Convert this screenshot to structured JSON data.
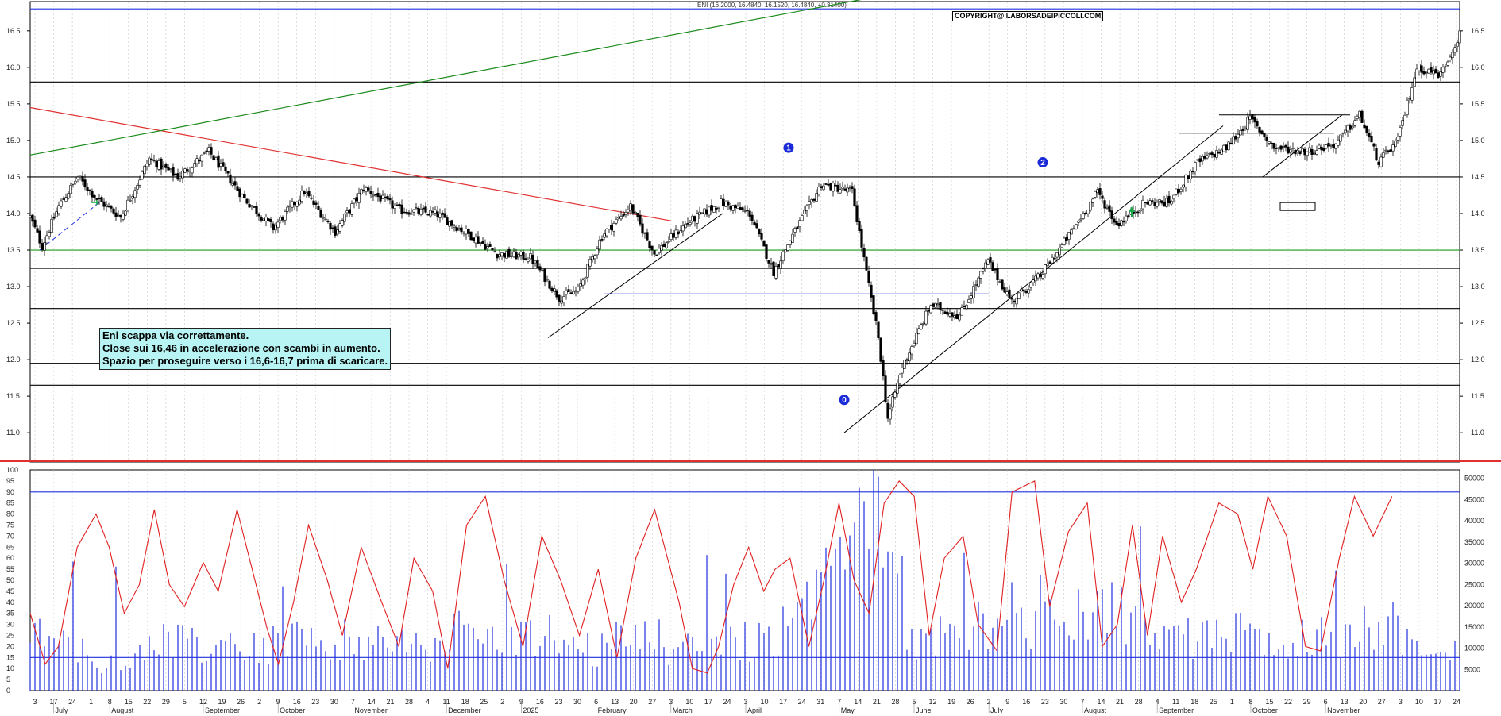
{
  "header": {
    "quote": "ENI (16.2000, 16.4840, 16.1520, 16.4840, +0.31400)",
    "copyright": "COPYRIGHT@ LABORSADEIPICCOLI.COM"
  },
  "note": {
    "line1": "Eni scappa via correttamente.",
    "line2": "Close sui 16,46 in accelerazione con scambi in aumento.",
    "line3": "Spazio per proseguire verso i 16,6-16,7 prima di scaricare."
  },
  "wave_labels": [
    "0",
    "1",
    "2"
  ],
  "chart_data": [
    {
      "type": "candlestick",
      "title": "ENI (16.2000, 16.4840, 16.1520, 16.4840, +0.31400)",
      "ylim": [
        10.6,
        16.9
      ],
      "y_ticks": [
        "11.0",
        "11.5",
        "12.0",
        "12.5",
        "13.0",
        "13.5",
        "14.0",
        "14.5",
        "15.0",
        "15.5",
        "16.0",
        "16.5"
      ],
      "x_months": [
        "July",
        "August",
        "September",
        "October",
        "November",
        "December",
        "2025",
        "February",
        "March",
        "April",
        "May",
        "June",
        "July",
        "August",
        "September",
        "October",
        "November"
      ],
      "x_days": [
        "3",
        "17",
        "24",
        "1",
        "8",
        "15",
        "22",
        "29",
        "5",
        "12",
        "19",
        "26",
        "2",
        "9",
        "16",
        "23",
        "30",
        "7",
        "14",
        "21",
        "28",
        "4",
        "11",
        "18",
        "25",
        "2",
        "9",
        "16",
        "23",
        "30",
        "6",
        "13",
        "20",
        "27",
        "3",
        "10",
        "17",
        "24",
        "3",
        "10",
        "17",
        "24",
        "31",
        "7",
        "14",
        "21",
        "28",
        "5",
        "12",
        "19",
        "26",
        "2",
        "9",
        "16",
        "23",
        "30",
        "7",
        "14",
        "21",
        "28",
        "4",
        "11",
        "18",
        "25",
        "1",
        "8",
        "15",
        "22",
        "29",
        "6",
        "13",
        "20",
        "27",
        "3",
        "10",
        "17",
        "24"
      ],
      "close_anchors": [
        [
          0,
          13.95
        ],
        [
          5,
          13.55
        ],
        [
          12,
          14.1
        ],
        [
          20,
          14.5
        ],
        [
          28,
          14.2
        ],
        [
          38,
          13.95
        ],
        [
          50,
          14.75
        ],
        [
          62,
          14.5
        ],
        [
          75,
          14.85
        ],
        [
          90,
          14.2
        ],
        [
          102,
          13.8
        ],
        [
          115,
          14.3
        ],
        [
          128,
          13.75
        ],
        [
          140,
          14.35
        ],
        [
          155,
          14.05
        ],
        [
          170,
          14.0
        ],
        [
          185,
          13.7
        ],
        [
          196,
          13.45
        ],
        [
          210,
          13.4
        ],
        [
          222,
          12.85
        ],
        [
          230,
          12.95
        ],
        [
          240,
          13.7
        ],
        [
          252,
          14.1
        ],
        [
          262,
          13.45
        ],
        [
          275,
          13.85
        ],
        [
          290,
          14.15
        ],
        [
          302,
          14.0
        ],
        [
          312,
          13.2
        ],
        [
          320,
          13.7
        ],
        [
          332,
          14.4
        ],
        [
          345,
          14.3
        ],
        [
          352,
          13.0
        ],
        [
          356,
          12.3
        ],
        [
          360,
          11.2
        ],
        [
          366,
          11.9
        ],
        [
          378,
          12.75
        ],
        [
          390,
          12.6
        ],
        [
          402,
          13.35
        ],
        [
          412,
          12.8
        ],
        [
          424,
          13.15
        ],
        [
          436,
          13.7
        ],
        [
          448,
          14.3
        ],
        [
          456,
          13.85
        ],
        [
          468,
          14.15
        ],
        [
          478,
          14.15
        ],
        [
          490,
          14.7
        ],
        [
          502,
          14.9
        ],
        [
          512,
          15.3
        ],
        [
          522,
          14.9
        ],
        [
          536,
          14.85
        ],
        [
          548,
          14.95
        ],
        [
          558,
          15.35
        ],
        [
          566,
          14.7
        ],
        [
          574,
          15.0
        ],
        [
          582,
          16.0
        ],
        [
          592,
          15.9
        ],
        [
          600,
          16.46
        ]
      ],
      "volume_anchors": [
        [
          0,
          13000
        ],
        [
          30,
          7000
        ],
        [
          60,
          12000
        ],
        [
          90,
          9000
        ],
        [
          120,
          14000
        ],
        [
          150,
          11000
        ],
        [
          180,
          13000
        ],
        [
          210,
          15000
        ],
        [
          230,
          9000
        ],
        [
          250,
          12000
        ],
        [
          280,
          10000
        ],
        [
          300,
          12000
        ],
        [
          320,
          15000
        ],
        [
          345,
          30000
        ],
        [
          355,
          52000
        ],
        [
          370,
          12000
        ],
        [
          400,
          15000
        ],
        [
          430,
          16000
        ],
        [
          455,
          18000
        ],
        [
          480,
          12000
        ],
        [
          510,
          13000
        ],
        [
          540,
          12000
        ],
        [
          570,
          16000
        ],
        [
          590,
          10000
        ],
        [
          600,
          12000
        ]
      ],
      "horizontal_levels": [
        16.8,
        15.8,
        14.5,
        13.5,
        13.25,
        12.7,
        11.95,
        11.65
      ],
      "annotations": [
        "0",
        "1",
        "2"
      ]
    },
    {
      "type": "line",
      "name": "oscillator",
      "ylim": [
        0,
        100
      ],
      "y_ticks": [
        "0",
        "5",
        "10",
        "15",
        "20",
        "25",
        "30",
        "35",
        "40",
        "45",
        "50",
        "55",
        "60",
        "65",
        "70",
        "75",
        "80",
        "85",
        "90",
        "95",
        "100"
      ],
      "volume_ticks": [
        "5000",
        "10000",
        "15000",
        "20000",
        "25000",
        "30000",
        "35000",
        "40000",
        "45000",
        "50000"
      ],
      "levels": [
        90,
        15
      ],
      "line_anchors": [
        [
          0,
          35
        ],
        [
          8,
          12
        ],
        [
          15,
          20
        ],
        [
          25,
          65
        ],
        [
          35,
          80
        ],
        [
          42,
          65
        ],
        [
          50,
          35
        ],
        [
          58,
          48
        ],
        [
          66,
          82
        ],
        [
          74,
          48
        ],
        [
          82,
          38
        ],
        [
          92,
          58
        ],
        [
          100,
          45
        ],
        [
          110,
          82
        ],
        [
          118,
          55
        ],
        [
          126,
          28
        ],
        [
          132,
          12
        ],
        [
          140,
          40
        ],
        [
          148,
          75
        ],
        [
          158,
          50
        ],
        [
          166,
          25
        ],
        [
          176,
          65
        ],
        [
          186,
          42
        ],
        [
          196,
          20
        ],
        [
          204,
          60
        ],
        [
          214,
          45
        ],
        [
          222,
          10
        ],
        [
          232,
          75
        ],
        [
          242,
          88
        ],
        [
          252,
          50
        ],
        [
          262,
          20
        ],
        [
          272,
          70
        ],
        [
          282,
          50
        ],
        [
          292,
          25
        ],
        [
          302,
          55
        ],
        [
          312,
          15
        ],
        [
          322,
          60
        ],
        [
          332,
          82
        ],
        [
          345,
          40
        ],
        [
          352,
          10
        ],
        [
          360,
          8
        ],
        [
          366,
          20
        ],
        [
          374,
          48
        ],
        [
          382,
          65
        ],
        [
          390,
          45
        ],
        [
          396,
          55
        ],
        [
          404,
          60
        ],
        [
          414,
          20
        ],
        [
          422,
          50
        ],
        [
          430,
          85
        ],
        [
          438,
          50
        ],
        [
          446,
          35
        ],
        [
          454,
          85
        ],
        [
          462,
          95
        ],
        [
          470,
          88
        ],
        [
          478,
          25
        ],
        [
          486,
          60
        ],
        [
          496,
          70
        ],
        [
          504,
          30
        ],
        [
          514,
          18
        ],
        [
          522,
          90
        ],
        [
          534,
          95
        ],
        [
          542,
          38
        ],
        [
          552,
          72
        ],
        [
          562,
          85
        ],
        [
          570,
          20
        ],
        [
          578,
          30
        ],
        [
          586,
          75
        ],
        [
          594,
          25
        ],
        [
          602,
          70
        ],
        [
          612,
          40
        ],
        [
          620,
          55
        ],
        [
          632,
          85
        ],
        [
          642,
          80
        ],
        [
          650,
          55
        ],
        [
          658,
          88
        ],
        [
          668,
          70
        ],
        [
          678,
          20
        ],
        [
          686,
          18
        ],
        [
          696,
          60
        ],
        [
          704,
          88
        ],
        [
          714,
          70
        ],
        [
          724,
          88
        ]
      ]
    }
  ]
}
